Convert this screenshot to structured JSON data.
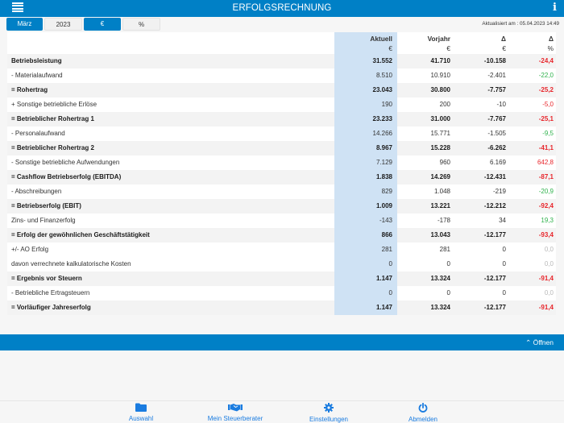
{
  "header": {
    "title": "ERFOLGSRECHNUNG",
    "menu_icon": "hamburger-icon",
    "info_icon": "info-icon",
    "info_glyph": "i"
  },
  "filters": {
    "month": "März",
    "year": "2023",
    "currency": "€",
    "percent": "%",
    "updated": "Aktualisiert am : 05.04.2023 14:49"
  },
  "table": {
    "columns": [
      {
        "label": "Aktuell",
        "unit": "€"
      },
      {
        "label": "Vorjahr",
        "unit": "€"
      },
      {
        "label": "Δ",
        "unit": "€"
      },
      {
        "label": "Δ",
        "unit": "%"
      }
    ],
    "rows": [
      {
        "label": "Betriebsleistung",
        "bold": true,
        "aktuell": "31.552",
        "vorjahr": "41.710",
        "delta": "-10.158",
        "pct": "-24,4",
        "pct_color": "red"
      },
      {
        "label": "- Materialaufwand",
        "bold": false,
        "aktuell": "8.510",
        "vorjahr": "10.910",
        "delta": "-2.401",
        "pct": "-22,0",
        "pct_color": "green"
      },
      {
        "label": "= Rohertrag",
        "bold": true,
        "aktuell": "23.043",
        "vorjahr": "30.800",
        "delta": "-7.757",
        "pct": "-25,2",
        "pct_color": "red"
      },
      {
        "label": "+ Sonstige betriebliche Erlöse",
        "bold": false,
        "aktuell": "190",
        "vorjahr": "200",
        "delta": "-10",
        "pct": "-5,0",
        "pct_color": "red"
      },
      {
        "label": "= Betrieblicher Rohertrag 1",
        "bold": true,
        "aktuell": "23.233",
        "vorjahr": "31.000",
        "delta": "-7.767",
        "pct": "-25,1",
        "pct_color": "red"
      },
      {
        "label": "- Personalaufwand",
        "bold": false,
        "aktuell": "14.266",
        "vorjahr": "15.771",
        "delta": "-1.505",
        "pct": "-9,5",
        "pct_color": "green"
      },
      {
        "label": "= Betrieblicher Rohertrag 2",
        "bold": true,
        "aktuell": "8.967",
        "vorjahr": "15.228",
        "delta": "-6.262",
        "pct": "-41,1",
        "pct_color": "red"
      },
      {
        "label": "- Sonstige betriebliche Aufwendungen",
        "bold": false,
        "aktuell": "7.129",
        "vorjahr": "960",
        "delta": "6.169",
        "pct": "642,8",
        "pct_color": "red"
      },
      {
        "label": "= Cashflow Betriebserfolg (EBITDA)",
        "bold": true,
        "aktuell": "1.838",
        "vorjahr": "14.269",
        "delta": "-12.431",
        "pct": "-87,1",
        "pct_color": "red"
      },
      {
        "label": "- Abschreibungen",
        "bold": false,
        "aktuell": "829",
        "vorjahr": "1.048",
        "delta": "-219",
        "pct": "-20,9",
        "pct_color": "green"
      },
      {
        "label": "= Betriebserfolg (EBIT)",
        "bold": true,
        "aktuell": "1.009",
        "vorjahr": "13.221",
        "delta": "-12.212",
        "pct": "-92,4",
        "pct_color": "red"
      },
      {
        "label": "Zins- und Finanzerfolg",
        "bold": false,
        "aktuell": "-143",
        "vorjahr": "-178",
        "delta": "34",
        "pct": "19,3",
        "pct_color": "green"
      },
      {
        "label": "= Erfolg der gewöhnlichen Geschäftstätigkeit",
        "bold": true,
        "aktuell": "866",
        "vorjahr": "13.043",
        "delta": "-12.177",
        "pct": "-93,4",
        "pct_color": "red"
      },
      {
        "label": "+/- AO Erfolg",
        "bold": false,
        "aktuell": "281",
        "vorjahr": "281",
        "delta": "0",
        "pct": "0,0",
        "pct_color": "grey"
      },
      {
        "label": "davon verrechnete kalkulatorische Kosten",
        "bold": false,
        "aktuell": "0",
        "vorjahr": "0",
        "delta": "0",
        "pct": "0,0",
        "pct_color": "grey"
      },
      {
        "label": "= Ergebnis vor Steuern",
        "bold": true,
        "aktuell": "1.147",
        "vorjahr": "13.324",
        "delta": "-12.177",
        "pct": "-91,4",
        "pct_color": "red"
      },
      {
        "label": "- Betriebliche Ertragsteuern",
        "bold": false,
        "aktuell": "0",
        "vorjahr": "0",
        "delta": "0",
        "pct": "0,0",
        "pct_color": "grey"
      },
      {
        "label": "= Vorläufiger Jahreserfolg",
        "bold": true,
        "aktuell": "1.147",
        "vorjahr": "13.324",
        "delta": "-12.177",
        "pct": "-91,4",
        "pct_color": "red"
      }
    ]
  },
  "drawer": {
    "open_label": "⌃ Öffnen"
  },
  "tabbar": {
    "items": [
      {
        "label": "Auswahl",
        "icon": "folder-icon"
      },
      {
        "label": "Mein Steuerberater",
        "icon": "handshake-icon"
      },
      {
        "label": "Einstellungen",
        "icon": "gear-icon"
      },
      {
        "label": "Abmelden",
        "icon": "power-icon"
      }
    ]
  },
  "colors": {
    "accent": "#0080c6",
    "highlight_column": "#cfe2f4",
    "negative": "#e8252b",
    "positive": "#2fb24c",
    "neutral": "#b9b9b9",
    "tab_icon": "#1a7ce0"
  }
}
